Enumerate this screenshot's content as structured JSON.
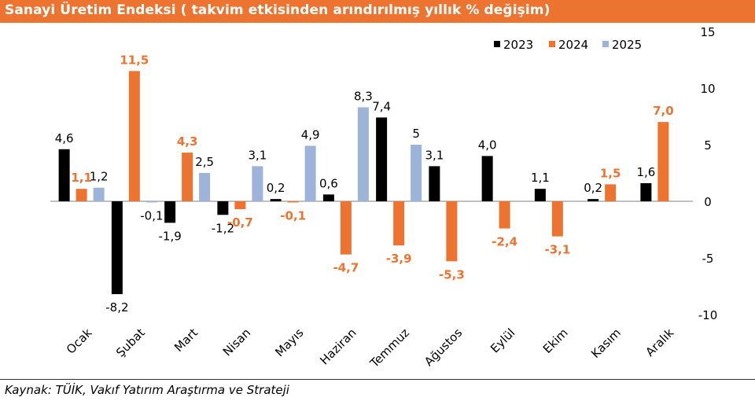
{
  "title": "Sanayi Üretim Endeksi ( takvim etkisinden arındırılmış yıllık % değişim)",
  "source": "Kaynak: TÜİK, Vakıf Yatırım Araştırma ve Strateji",
  "colors": {
    "title_bg": "#ED7430",
    "s2023": "#000000",
    "s2024": "#ED7430",
    "s2025": "#9DB3D8"
  },
  "chart_data": {
    "type": "bar",
    "title": "Sanayi Üretim Endeksi ( takvim etkisinden arındırılmış yıllık % değişim)",
    "categories": [
      "Ocak",
      "Şubat",
      "Mart",
      "Nisan",
      "Mayıs",
      "Haziran",
      "Temmuz",
      "Ağustos",
      "Eylül",
      "Ekim",
      "Kasım",
      "Aralık"
    ],
    "ylim": [
      -10,
      15
    ],
    "yticks": [
      -10,
      -5,
      0,
      5,
      10,
      15
    ],
    "ytick_labels": [
      "-10",
      "-5",
      "0",
      "5",
      "10",
      "15"
    ],
    "y_axis_position": "right",
    "grid": false,
    "legend_position": "top-right",
    "series": [
      {
        "name": "2023",
        "color": "#000000",
        "values": [
          4.6,
          -8.2,
          -1.9,
          -1.2,
          0.2,
          0.6,
          7.4,
          3.1,
          4.0,
          1.1,
          0.2,
          1.6
        ],
        "labels": [
          "4,6",
          "-8,2",
          "-1,9",
          "-1,2",
          "0,2",
          "0,6",
          "7,4",
          "3,1",
          "4,0",
          "1,1",
          "0,2",
          "1,6"
        ],
        "label_color": "#000000"
      },
      {
        "name": "2024",
        "color": "#ED7430",
        "values": [
          1.1,
          11.5,
          4.3,
          -0.7,
          -0.1,
          -4.7,
          -3.9,
          -5.3,
          -2.4,
          -3.1,
          1.5,
          7.0
        ],
        "labels": [
          "1,1",
          "11,5",
          "4,3",
          "-0,7",
          "-0,1",
          "-4,7",
          "-3,9",
          "-5,3",
          "-2,4",
          "-3,1",
          "1,5",
          "7,0"
        ],
        "label_color": "#ED7430"
      },
      {
        "name": "2025",
        "color": "#9DB3D8",
        "values": [
          1.2,
          -0.1,
          2.5,
          3.1,
          4.9,
          8.3,
          5.0,
          null,
          null,
          null,
          null,
          null
        ],
        "labels": [
          "1,2",
          "-0,1",
          "2,5",
          "3,1",
          "4,9",
          "8,3",
          "5",
          null,
          null,
          null,
          null,
          null
        ],
        "label_color": "#000000"
      }
    ]
  }
}
